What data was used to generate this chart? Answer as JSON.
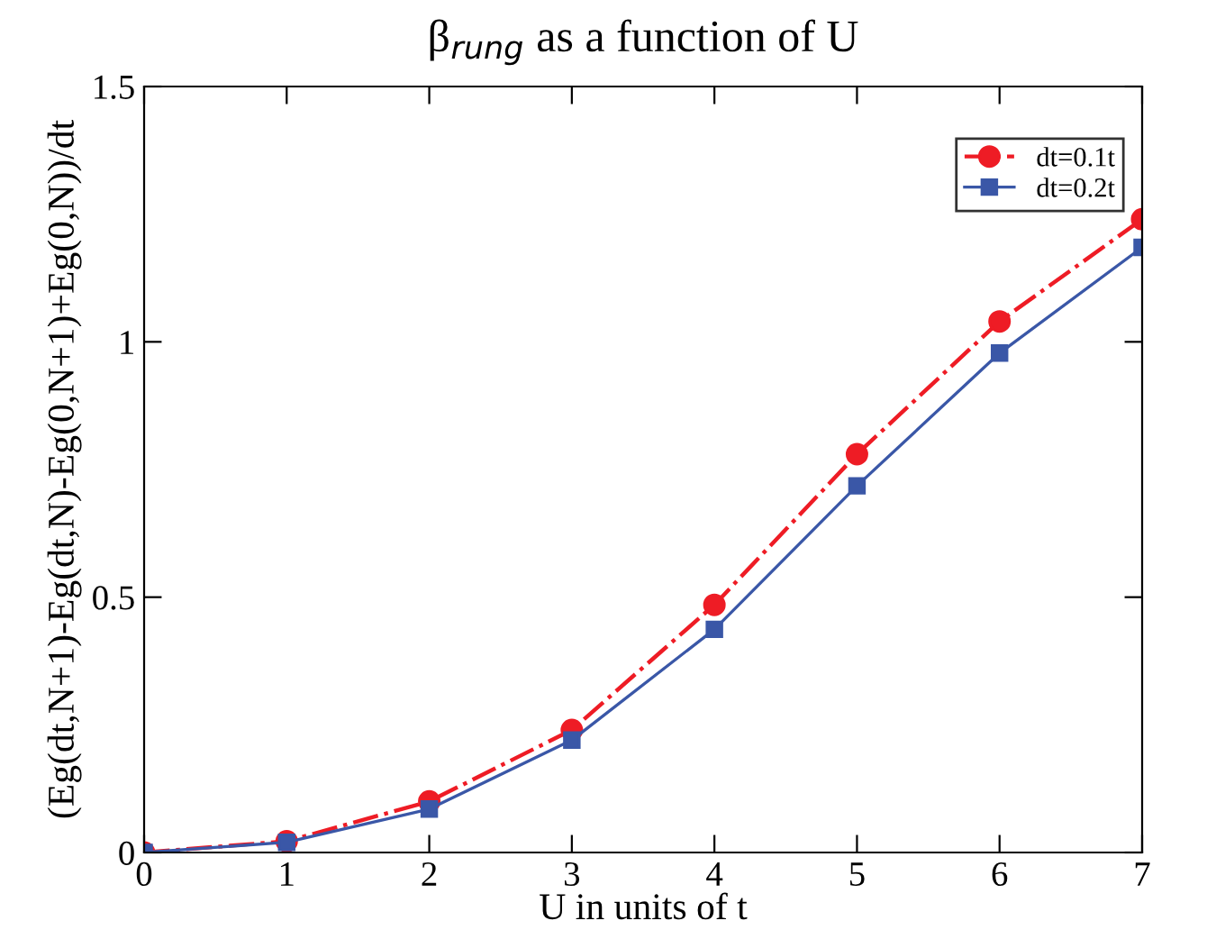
{
  "chart_data": {
    "type": "line",
    "title": "β$_{rung}$ as a function of U",
    "xlabel": "U in units of t",
    "ylabel": "(Eg(dt,N+1)-Eg(dt,N)-Eg(0,N+1)+Eg(0,N))/dt",
    "x": [
      0,
      1,
      2,
      3,
      4,
      5,
      6,
      7
    ],
    "series": [
      {
        "name": "dt=0.1t",
        "color": "#ee1c25",
        "marker": "circle",
        "line_style": "dashdot",
        "values": [
          0,
          0.022,
          0.1,
          0.24,
          0.485,
          0.78,
          1.04,
          1.24
        ]
      },
      {
        "name": "dt=0.2t",
        "color": "#3a57a7",
        "marker": "square",
        "line_style": "solid",
        "values": [
          0,
          0.02,
          0.085,
          0.22,
          0.437,
          0.718,
          0.978,
          1.185
        ]
      }
    ],
    "xlim": [
      0,
      7
    ],
    "xticks": [
      0,
      1,
      2,
      3,
      4,
      5,
      6,
      7
    ],
    "ylim": [
      0,
      1.5
    ],
    "yticks": [
      0,
      0.5,
      1,
      1.5
    ],
    "grid": false,
    "legend": "top right"
  }
}
